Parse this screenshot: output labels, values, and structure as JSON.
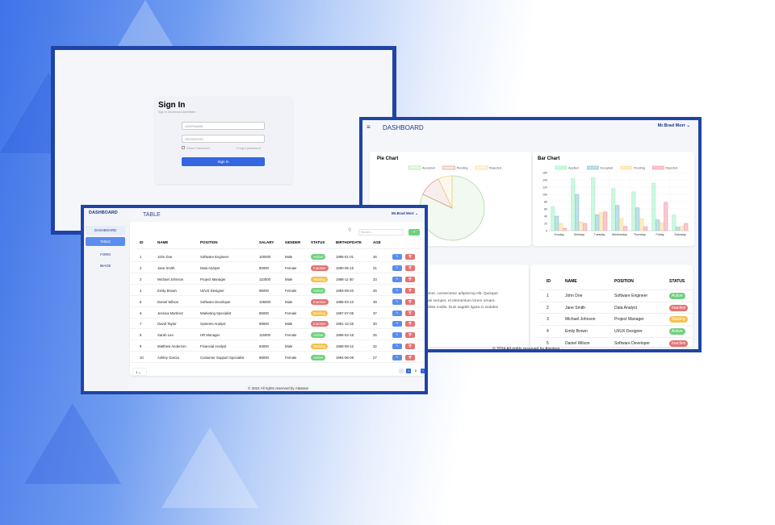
{
  "colors": {
    "frame": "#1f44a6",
    "primary": "#3366e0",
    "active": "#6fd07e",
    "inactive": "#e57373",
    "waiting": "#f5c04a",
    "sidebar_active": "#5b8def",
    "add": "#6fd07e"
  },
  "login": {
    "title": "Sign In",
    "subtitle": "Sign In Dashboard Administer",
    "username_placeholder": "USERNAME",
    "password_placeholder": "PASSWORD",
    "show_password": "Show Password",
    "forgot": "Forgot password",
    "submit": "Sign In"
  },
  "table_app": {
    "brand": "DASHBOARD",
    "page_title": "TABLE",
    "user": "Mr.Brad Morr",
    "sidebar": [
      {
        "label": "DASHBOARD"
      },
      {
        "label": "TABLE"
      },
      {
        "label": "FORM"
      },
      {
        "label": "IMAGE"
      }
    ],
    "search_placeholder": "Search ...",
    "add_label": "+",
    "columns": [
      "ID",
      "NAME",
      "POSITION",
      "SALARY",
      "GENDER",
      "STATUS",
      "BIRTHOFDATE",
      "AGE"
    ],
    "rows": [
      [
        "1",
        "John Doe",
        "Software Engineer",
        "100000",
        "Male",
        "Active",
        "1995-01-01",
        "26"
      ],
      [
        "2",
        "Jane Smith",
        "Data Analyst",
        "90000",
        "Female",
        "Inactive",
        "1990-05-15",
        "31"
      ],
      [
        "3",
        "Michael Johnson",
        "Project Manager",
        "110000",
        "Male",
        "Waiting",
        "1988-11-30",
        "33"
      ],
      [
        "4",
        "Emily Brown",
        "UI/UX Designer",
        "95000",
        "Female",
        "Active",
        "1993-09-20",
        "28"
      ],
      [
        "5",
        "Daniel Wilson",
        "Software Developer",
        "105000",
        "Male",
        "Inactive",
        "1985-03-10",
        "39"
      ],
      [
        "6",
        "Jessica Martinez",
        "Marketing Specialist",
        "85000",
        "Female",
        "Waiting",
        "1987-07-05",
        "37"
      ],
      [
        "7",
        "David Taylor",
        "Systems Analyst",
        "98000",
        "Male",
        "Inactive",
        "1991-12-25",
        "30"
      ],
      [
        "8",
        "Sarah Lee",
        "HR Manager",
        "115000",
        "Female",
        "Active",
        "1996-04-18",
        "25"
      ],
      [
        "9",
        "Matthew Anderson",
        "Financial Analyst",
        "93000",
        "Male",
        "Waiting",
        "1989-08-12",
        "32"
      ],
      [
        "10",
        "Ashley Garcia",
        "Customer Support Specialist",
        "88000",
        "Female",
        "Active",
        "1994-06-08",
        "27"
      ]
    ],
    "page_size": "1",
    "pages": [
      "1",
      "2"
    ],
    "current_page": "1",
    "footer": "© 2024 All rights reserved by Alastear"
  },
  "dashboard_app": {
    "title": "DASHBOARD",
    "user": "Mr.Brad Morr",
    "text_lines": [
      "amet, consectetur adipiscing elit. Quisque",
      "nisi semper, et elementum lorem ornare.",
      "cilisis mollis. Duis sagittis ligula in sodales"
    ],
    "columns": [
      "ID",
      "NAME",
      "POSITION",
      "STATUS"
    ],
    "rows": [
      [
        "1",
        "John Doe",
        "Software Engineer",
        "Active"
      ],
      [
        "2",
        "Jane Smith",
        "Data Analyst",
        "Inactive"
      ],
      [
        "3",
        "Michael Johnson",
        "Project Manager",
        "Waiting"
      ],
      [
        "4",
        "Emily Brown",
        "UI/UX Designer",
        "Active"
      ],
      [
        "5",
        "Daniel Wilson",
        "Software Developer",
        "Inactive"
      ]
    ],
    "footer": "© 2024 All rights reserved by Alastear"
  },
  "chart_data": [
    {
      "type": "pie",
      "title": "Pie Chart",
      "labels": [
        "Accepted",
        "Pending",
        "Rejected"
      ],
      "values": [
        82,
        11,
        7
      ],
      "colors": [
        "#a5d99b",
        "#d98b8b",
        "#f2d27a"
      ],
      "legend": "top"
    },
    {
      "type": "bar",
      "title": "Bar Chart",
      "categories": [
        "Sunday",
        "Monday",
        "Tuesday",
        "Wednesday",
        "Thursday",
        "Friday",
        "Saturday"
      ],
      "ylim": [
        0,
        160
      ],
      "yticks": [
        0,
        20,
        40,
        60,
        80,
        100,
        120,
        140,
        160
      ],
      "grid": true,
      "legend": "top",
      "series": [
        {
          "name": "Applied",
          "values": [
            66,
            144,
            146,
            116,
            107,
            131,
            43
          ],
          "color": "#9ef0c4"
        },
        {
          "name": "Accepted",
          "values": [
            40,
            100,
            44,
            70,
            63,
            30,
            10
          ],
          "color": "#7fc1cf"
        },
        {
          "name": "Pending",
          "values": [
            20,
            24,
            50,
            34,
            33,
            22,
            12
          ],
          "color": "#fbd98a"
        },
        {
          "name": "Rejected",
          "values": [
            6,
            20,
            52,
            12,
            11,
            78,
            20
          ],
          "color": "#f391a6"
        }
      ]
    }
  ]
}
